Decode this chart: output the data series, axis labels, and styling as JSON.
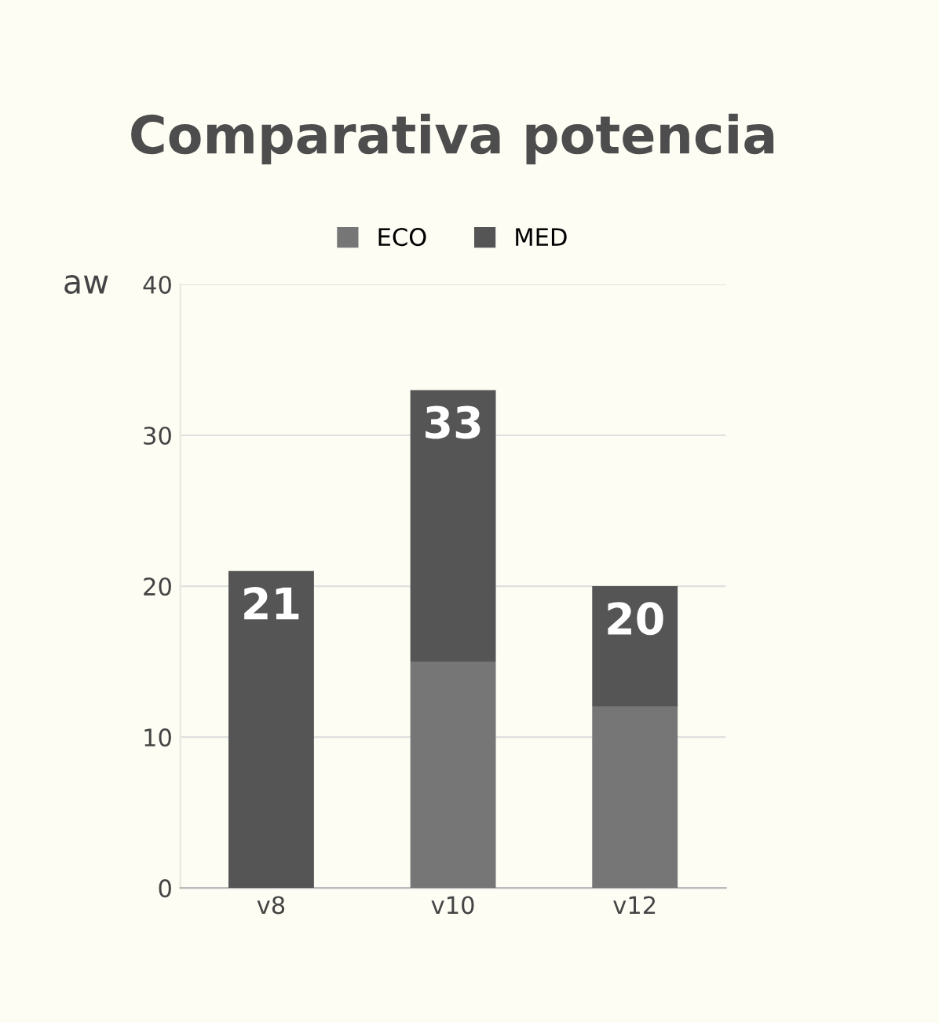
{
  "chart_data": {
    "type": "bar",
    "title": "Comparativa potencia",
    "ylabel": "aw",
    "categories": [
      "v8",
      "v10",
      "v12"
    ],
    "series": [
      {
        "name": "ECO",
        "color": "#767676",
        "values": [
          0,
          15,
          12
        ]
      },
      {
        "name": "MED",
        "color": "#555555",
        "values": [
          21,
          18,
          8
        ]
      }
    ],
    "stacked": true,
    "totals": [
      "21",
      "33",
      "20"
    ],
    "ylim": [
      0,
      40
    ],
    "yticks": [
      0,
      10,
      20,
      30,
      40
    ],
    "grid": "y",
    "legend": "top"
  }
}
